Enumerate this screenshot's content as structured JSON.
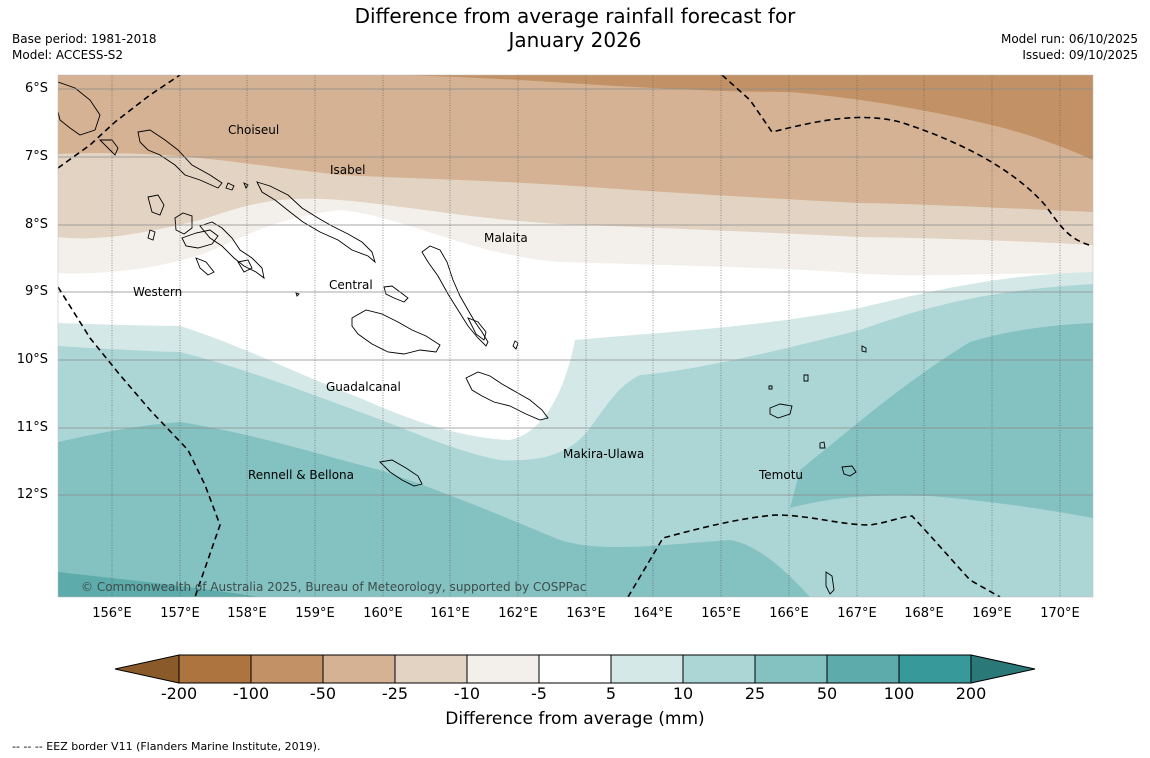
{
  "title": {
    "line1": "Difference from average rainfall forecast for",
    "line2": "January 2026"
  },
  "meta_left": {
    "base_period": "Base period: 1981-2018",
    "model": "Model: ACCESS-S2"
  },
  "meta_right": {
    "model_run": "Model run: 06/10/2025",
    "issued": "Issued: 09/10/2025"
  },
  "map": {
    "lat_labels": [
      "6°S",
      "7°S",
      "8°S",
      "9°S",
      "10°S",
      "11°S",
      "12°S"
    ],
    "lon_labels": [
      "156°E",
      "157°E",
      "158°E",
      "159°E",
      "160°E",
      "161°E",
      "162°E",
      "163°E",
      "164°E",
      "165°E",
      "166°E",
      "167°E",
      "168°E",
      "169°E",
      "170°E"
    ],
    "regions": {
      "choiseul": "Choiseul",
      "isabel": "Isabel",
      "malaita": "Malaita",
      "western": "Western",
      "central": "Central",
      "guadalcanal": "Guadalcanal",
      "makira": "Makira-Ulawa",
      "rennell": "Rennell & Bellona",
      "temotu": "Temotu"
    },
    "copyright": "© Commonwealth of Australia 2025, Bureau of Meteorology, supported by COSPPac"
  },
  "colorbar": {
    "ticks": [
      "-200",
      "-100",
      "-50",
      "-25",
      "-10",
      "-5",
      "5",
      "10",
      "25",
      "50",
      "100",
      "200"
    ],
    "colors": {
      "under": "#8a5a2b",
      "b_200_100": "#ad743f",
      "b_100_50": "#c29266",
      "b_50_25": "#d4b293",
      "b_25_10": "#e3d3c3",
      "b_10_5": "#f3efea",
      "b_5_5": "#ffffff",
      "b_5_10": "#d5e8e8",
      "b_10_25": "#acd6d6",
      "b_25_50": "#84c1c1",
      "b_50_100": "#5eabab",
      "b_100_200": "#38999a",
      "over": "#2b7878"
    },
    "label": "Difference from average (mm)"
  },
  "footnote": "--  --  -- EEZ border V11 (Flanders Marine Institute, 2019)."
}
